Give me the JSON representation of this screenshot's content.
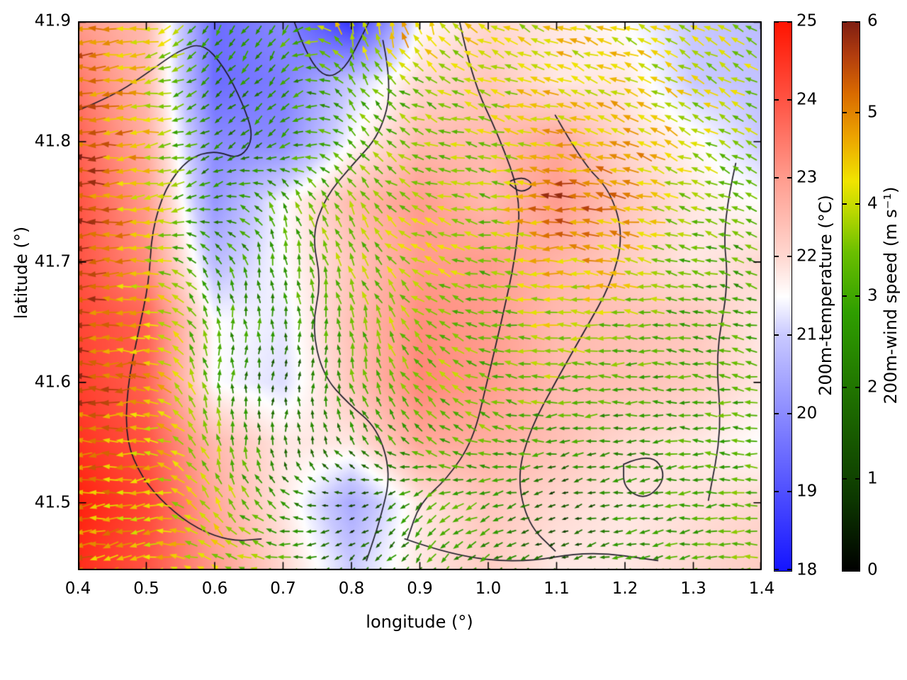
{
  "chart_data": {
    "type": "heatmap",
    "overlays": [
      "wind-vector-arrows",
      "terrain-contour-lines"
    ],
    "title": "",
    "xlabel": "longitude (°)",
    "ylabel": "latitude (°)",
    "xlim": [
      0.4,
      1.4
    ],
    "ylim": [
      41.444,
      41.9
    ],
    "x_tick_values": [
      0.4,
      0.5,
      0.6,
      0.7,
      0.8,
      0.9,
      1.0,
      1.1,
      1.2,
      1.3,
      1.4
    ],
    "x_tick_labels": [
      "0.4",
      "0.5",
      "0.6",
      "0.7",
      "0.8",
      "0.9",
      "1.0",
      "1.1",
      "1.2",
      "1.3",
      "1.4"
    ],
    "y_tick_values": [
      41.5,
      41.6,
      41.7,
      41.8,
      41.9
    ],
    "y_tick_labels": [
      "41.5",
      "41.6",
      "41.7",
      "41.8",
      "41.9"
    ],
    "grid": {
      "lon0": 0.4,
      "dlon": 0.1,
      "nlon": 11,
      "lat0": 41.9,
      "dlat": 0.05,
      "nlat": 10
    },
    "contour_color": "#1c1c28",
    "temperature": {
      "label": "200m-temperature (°C)",
      "range": [
        18,
        25
      ],
      "tick_values": [
        18,
        19,
        20,
        21,
        22,
        23,
        24,
        25
      ],
      "tick_labels": [
        "18",
        "19",
        "20",
        "21",
        "22",
        "23",
        "24",
        "25"
      ],
      "colormap": [
        [
          0.0,
          "#1414ff"
        ],
        [
          0.25,
          "#7b7bff"
        ],
        [
          0.43,
          "#c9c9ff"
        ],
        [
          0.5,
          "#ffffff"
        ],
        [
          0.57,
          "#ffd9d2"
        ],
        [
          0.71,
          "#ff9e90"
        ],
        [
          0.86,
          "#ff5242"
        ],
        [
          1.0,
          "#ff1400"
        ]
      ],
      "values": [
        [
          23.0,
          22.5,
          19.5,
          20.0,
          18.5,
          21.5,
          22.0,
          21.8,
          21.5,
          21.0,
          20.8
        ],
        [
          23.5,
          22.5,
          19.5,
          19.8,
          21.0,
          22.0,
          22.3,
          21.8,
          21.8,
          21.0,
          20.9
        ],
        [
          23.8,
          22.7,
          20.0,
          20.0,
          21.5,
          22.5,
          22.5,
          22.8,
          22.0,
          21.6,
          21.0
        ],
        [
          24.0,
          23.0,
          20.2,
          21.5,
          22.5,
          23.0,
          22.5,
          23.0,
          22.3,
          21.8,
          21.5
        ],
        [
          24.0,
          23.2,
          20.8,
          21.5,
          22.3,
          23.0,
          23.0,
          22.6,
          22.2,
          21.8,
          22.0
        ],
        [
          24.2,
          23.8,
          21.5,
          21.3,
          22.4,
          23.2,
          23.0,
          22.5,
          22.4,
          22.3,
          21.8
        ],
        [
          24.3,
          23.8,
          21.5,
          21.2,
          22.3,
          23.3,
          23.0,
          22.5,
          22.4,
          22.2,
          21.8
        ],
        [
          24.5,
          24.0,
          22.5,
          21.8,
          21.8,
          22.8,
          22.7,
          22.4,
          22.0,
          21.8,
          21.5
        ],
        [
          24.8,
          24.2,
          22.8,
          21.8,
          20.5,
          21.8,
          22.3,
          22.0,
          21.8,
          21.9,
          22.0
        ],
        [
          24.6,
          24.0,
          23.0,
          22.0,
          21.0,
          21.8,
          22.2,
          21.8,
          21.8,
          22.0,
          22.2
        ]
      ]
    },
    "wind": {
      "label": "200m-wind speed (m s⁻¹)",
      "range": [
        0,
        6
      ],
      "tick_values": [
        0,
        1,
        2,
        3,
        4,
        5,
        6
      ],
      "tick_labels": [
        "0",
        "1",
        "2",
        "3",
        "4",
        "5",
        "6"
      ],
      "colormap": [
        [
          0.0,
          "#000000"
        ],
        [
          0.13,
          "#0c3700"
        ],
        [
          0.3,
          "#1d6b00"
        ],
        [
          0.47,
          "#2f9e00"
        ],
        [
          0.58,
          "#6abf00"
        ],
        [
          0.66,
          "#c0da00"
        ],
        [
          0.71,
          "#f0e400"
        ],
        [
          0.79,
          "#eca400"
        ],
        [
          0.87,
          "#d96a00"
        ],
        [
          0.94,
          "#b13c0e"
        ],
        [
          1.0,
          "#7e1e12"
        ]
      ],
      "arrow_spacing_lon": 0.0195,
      "arrow_spacing_lat": 0.0107,
      "speed": [
        [
          5.5,
          4.5,
          2.5,
          3.0,
          4.5,
          5.0,
          4.0,
          4.2,
          4.2,
          4.0,
          3.6
        ],
        [
          5.5,
          4.2,
          2.2,
          2.5,
          3.0,
          3.5,
          4.0,
          4.2,
          4.2,
          4.0,
          3.8
        ],
        [
          5.6,
          4.5,
          2.0,
          2.5,
          3.2,
          3.5,
          3.8,
          4.5,
          4.8,
          4.0,
          3.5
        ],
        [
          5.8,
          4.2,
          2.2,
          3.0,
          3.5,
          3.8,
          3.5,
          5.5,
          5.0,
          3.5,
          3.2
        ],
        [
          5.8,
          4.2,
          2.5,
          3.0,
          3.5,
          4.0,
          3.5,
          4.5,
          4.5,
          3.2,
          3.0
        ],
        [
          5.6,
          4.5,
          3.0,
          2.5,
          3.5,
          3.8,
          3.2,
          4.0,
          3.5,
          3.0,
          2.8
        ],
        [
          5.5,
          4.8,
          3.2,
          1.2,
          3.0,
          3.5,
          3.5,
          3.5,
          3.0,
          3.0,
          3.0
        ],
        [
          5.2,
          4.5,
          3.5,
          2.0,
          2.2,
          3.0,
          3.2,
          2.8,
          2.5,
          3.0,
          3.0
        ],
        [
          5.0,
          4.2,
          4.0,
          2.5,
          0.5,
          2.8,
          3.0,
          0.8,
          2.5,
          3.0,
          3.5
        ],
        [
          5.0,
          4.5,
          4.0,
          3.0,
          1.5,
          2.8,
          2.5,
          1.2,
          2.8,
          3.0,
          3.5
        ]
      ],
      "direction_deg": [
        [
          180,
          190,
          235,
          240,
          90,
          100,
          150,
          160,
          160,
          150,
          150
        ],
        [
          180,
          185,
          225,
          230,
          120,
          150,
          160,
          160,
          155,
          150,
          150
        ],
        [
          180,
          185,
          210,
          220,
          130,
          160,
          170,
          170,
          160,
          155,
          150
        ],
        [
          180,
          185,
          200,
          110,
          120,
          160,
          170,
          175,
          165,
          160,
          155
        ],
        [
          180,
          180,
          120,
          100,
          110,
          150,
          170,
          180,
          170,
          165,
          160
        ],
        [
          180,
          180,
          100,
          90,
          100,
          140,
          170,
          180,
          175,
          170,
          165
        ],
        [
          180,
          180,
          90,
          80,
          100,
          130,
          160,
          180,
          180,
          175,
          170
        ],
        [
          180,
          185,
          100,
          90,
          120,
          140,
          160,
          190,
          185,
          180,
          175
        ],
        [
          185,
          190,
          120,
          150,
          200,
          220,
          200,
          200,
          190,
          185,
          180
        ],
        [
          190,
          195,
          150,
          180,
          220,
          230,
          210,
          200,
          195,
          190,
          185
        ]
      ]
    },
    "contours": [
      [
        [
          0.4,
          41.826
        ],
        [
          0.452,
          41.838
        ],
        [
          0.504,
          41.858
        ],
        [
          0.548,
          41.876
        ],
        [
          0.583,
          41.882
        ],
        [
          0.614,
          41.862
        ],
        [
          0.641,
          41.832
        ],
        [
          0.658,
          41.803
        ],
        [
          0.636,
          41.785
        ],
        [
          0.6,
          41.793
        ],
        [
          0.561,
          41.786
        ],
        [
          0.528,
          41.762
        ],
        [
          0.508,
          41.726
        ],
        [
          0.504,
          41.683
        ],
        [
          0.488,
          41.641
        ],
        [
          0.472,
          41.596
        ],
        [
          0.47,
          41.552
        ],
        [
          0.493,
          41.521
        ],
        [
          0.53,
          41.497
        ],
        [
          0.575,
          41.478
        ],
        [
          0.625,
          41.468
        ],
        [
          0.668,
          41.47
        ]
      ],
      [
        [
          0.716,
          41.9
        ],
        [
          0.734,
          41.872
        ],
        [
          0.762,
          41.852
        ],
        [
          0.79,
          41.86
        ],
        [
          0.812,
          41.884
        ],
        [
          0.826,
          41.9
        ]
      ],
      [
        [
          0.846,
          41.884
        ],
        [
          0.86,
          41.846
        ],
        [
          0.842,
          41.806
        ],
        [
          0.8,
          41.78
        ],
        [
          0.762,
          41.754
        ],
        [
          0.742,
          41.722
        ],
        [
          0.756,
          41.684
        ],
        [
          0.742,
          41.646
        ],
        [
          0.758,
          41.606
        ],
        [
          0.796,
          41.582
        ],
        [
          0.838,
          41.562
        ],
        [
          0.858,
          41.524
        ],
        [
          0.842,
          41.486
        ],
        [
          0.822,
          41.452
        ]
      ],
      [
        [
          0.958,
          41.9
        ],
        [
          0.976,
          41.852
        ],
        [
          1.016,
          41.804
        ],
        [
          1.048,
          41.754
        ],
        [
          1.04,
          41.704
        ],
        [
          1.02,
          41.652
        ],
        [
          0.998,
          41.6
        ],
        [
          0.978,
          41.552
        ],
        [
          0.94,
          41.52
        ],
        [
          0.9,
          41.5
        ],
        [
          0.882,
          41.47
        ]
      ],
      [
        [
          1.098,
          41.822
        ],
        [
          1.138,
          41.782
        ],
        [
          1.178,
          41.76
        ],
        [
          1.198,
          41.722
        ],
        [
          1.18,
          41.682
        ],
        [
          1.14,
          41.642
        ],
        [
          1.1,
          41.602
        ],
        [
          1.062,
          41.562
        ],
        [
          1.042,
          41.522
        ],
        [
          1.058,
          41.482
        ],
        [
          1.098,
          41.46
        ]
      ],
      [
        [
          1.362,
          41.782
        ],
        [
          1.342,
          41.732
        ],
        [
          1.352,
          41.682
        ],
        [
          1.332,
          41.622
        ],
        [
          1.342,
          41.562
        ],
        [
          1.322,
          41.502
        ]
      ],
      [
        [
          1.198,
          41.532
        ],
        [
          1.238,
          41.542
        ],
        [
          1.262,
          41.522
        ],
        [
          1.232,
          41.502
        ],
        [
          1.198,
          41.512
        ],
        [
          1.198,
          41.532
        ]
      ],
      [
        [
          0.878,
          41.47
        ],
        [
          0.948,
          41.456
        ],
        [
          1.048,
          41.45
        ],
        [
          1.148,
          41.46
        ],
        [
          1.248,
          41.452
        ]
      ],
      [
        [
          1.028,
          41.766
        ],
        [
          1.048,
          41.772
        ],
        [
          1.068,
          41.764
        ],
        [
          1.048,
          41.757
        ],
        [
          1.028,
          41.766
        ]
      ]
    ]
  }
}
